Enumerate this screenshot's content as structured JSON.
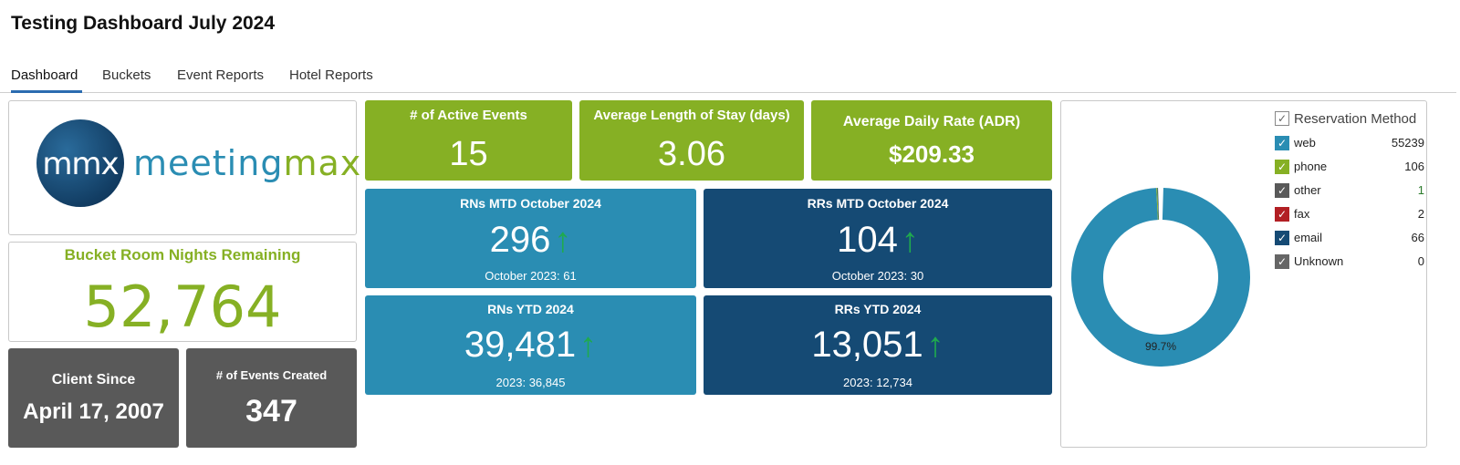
{
  "page": {
    "title": "Testing Dashboard July 2024"
  },
  "tabs": [
    {
      "label": "Dashboard",
      "active": true
    },
    {
      "label": "Buckets",
      "active": false
    },
    {
      "label": "Event Reports",
      "active": false
    },
    {
      "label": "Hotel Reports",
      "active": false
    }
  ],
  "logo": {
    "mark": "mmx",
    "word_part1": "meeting",
    "word_part2": "max"
  },
  "bucket": {
    "label": "Bucket Room Nights Remaining",
    "value": "52,764"
  },
  "client_since": {
    "label": "Client Since",
    "value": "April 17, 2007"
  },
  "events_created": {
    "label": "# of Events Created",
    "value": "347"
  },
  "active_events": {
    "label": "# of Active Events",
    "value": "15"
  },
  "avg_stay": {
    "label": "Average Length of Stay (days)",
    "value": "3.06"
  },
  "adr": {
    "label": "Average Daily Rate (ADR)",
    "value": "$209.33"
  },
  "rns_mtd": {
    "label": "RNs MTD October 2024",
    "value": "296",
    "arrow": "↑",
    "compare": "October 2023: 61"
  },
  "rrs_mtd": {
    "label": "RRs MTD October 2024",
    "value": "104",
    "arrow": "↑",
    "compare": "October 2023: 30"
  },
  "rns_ytd": {
    "label": "RNs YTD 2024",
    "value": "39,481",
    "arrow": "↑",
    "compare": "2023: 36,845"
  },
  "rrs_ytd": {
    "label": "RRs YTD 2024",
    "value": "13,051",
    "arrow": "↑",
    "compare": "2023: 12,734"
  },
  "chart": {
    "legend_title": "Reservation Method",
    "slice_label": "99.7%",
    "items": [
      {
        "label": "web",
        "value": "55239",
        "count": 55239,
        "color": "#2a8db3"
      },
      {
        "label": "phone",
        "value": "106",
        "count": 106,
        "color": "#86b024"
      },
      {
        "label": "other",
        "value": "1",
        "count": 1,
        "color": "#595959"
      },
      {
        "label": "fax",
        "value": "2",
        "count": 2,
        "color": "#b21f24"
      },
      {
        "label": "email",
        "value": "66",
        "count": 66,
        "color": "#154a74"
      },
      {
        "label": "Unknown",
        "value": "0",
        "count": 0,
        "color": "#666666"
      }
    ]
  }
}
